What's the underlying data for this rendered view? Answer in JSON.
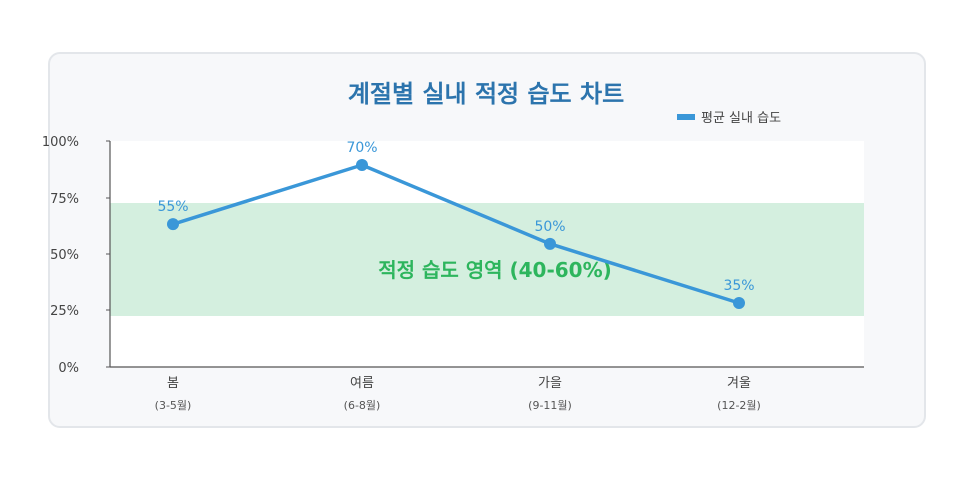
{
  "title": "계절별 실내 적정 습도 차트",
  "legend": {
    "label": "평균 실내 습도"
  },
  "colors": {
    "series": "#3a97d8",
    "band": "#d4efdf",
    "band_text": "#2db55d",
    "title": "#2c74ad"
  },
  "chart_data": {
    "type": "line",
    "title": "계절별 실내 적정 습도 차트",
    "categories": [
      "봄",
      "여름",
      "가을",
      "겨울"
    ],
    "category_sublabels": [
      "(3-5월)",
      "(6-8월)",
      "(9-11월)",
      "(12-2월)"
    ],
    "series": [
      {
        "name": "평균 실내 습도",
        "values": [
          55,
          70,
          50,
          35
        ],
        "data_labels": [
          "55%",
          "70%",
          "50%",
          "35%"
        ]
      }
    ],
    "y_ticks": [
      "0%",
      "25%",
      "50%",
      "75%",
      "100%"
    ],
    "ylim": [
      0,
      100
    ],
    "band": {
      "label": "적정 습도 영역 (40-60%)"
    },
    "grid": false,
    "legend_position": "top-right"
  }
}
